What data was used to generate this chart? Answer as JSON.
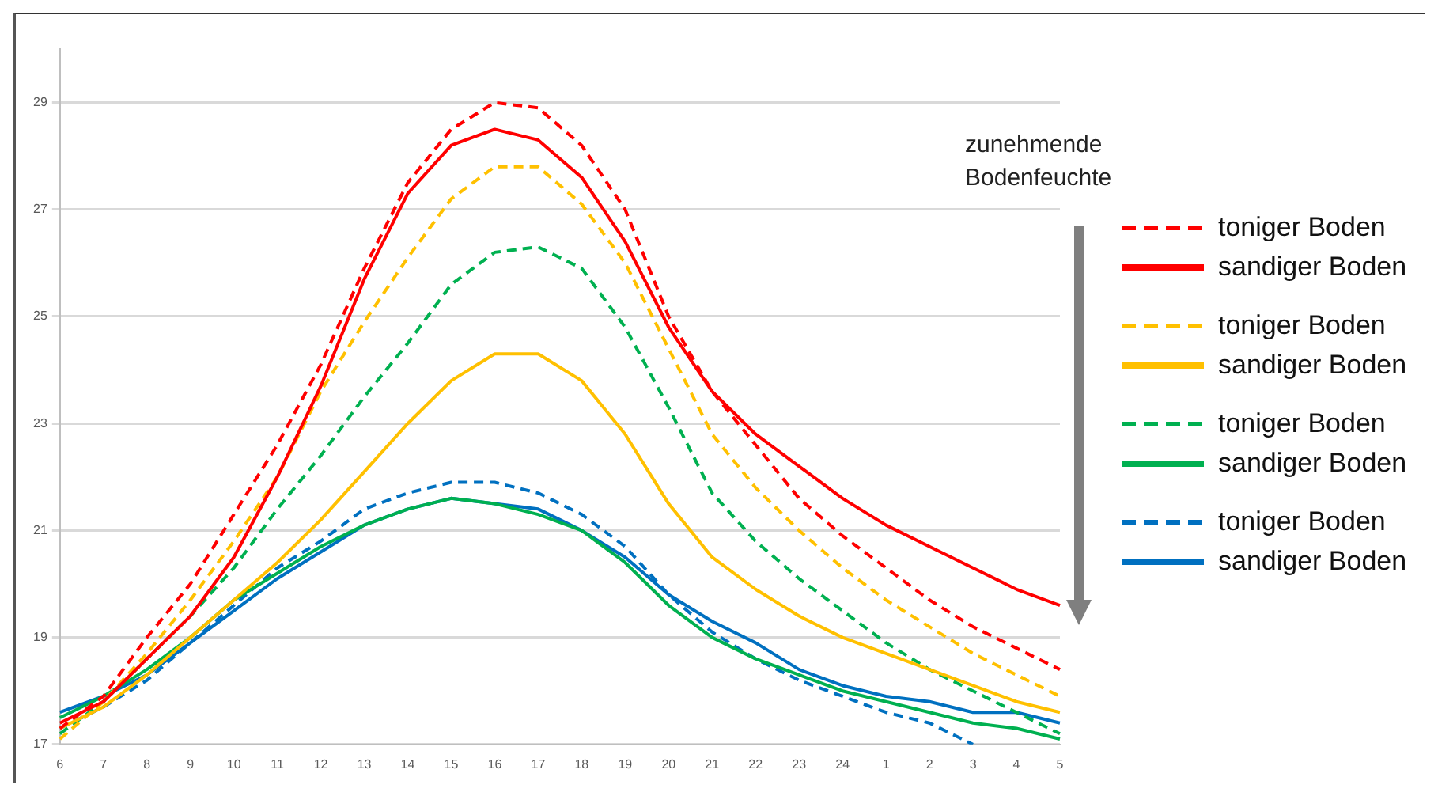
{
  "chart_data": {
    "type": "line",
    "categories": [
      "6",
      "7",
      "8",
      "9",
      "10",
      "11",
      "12",
      "13",
      "14",
      "15",
      "16",
      "17",
      "18",
      "19",
      "20",
      "21",
      "22",
      "23",
      "24",
      "1",
      "2",
      "3",
      "4",
      "5"
    ],
    "ylim": [
      17,
      30
    ],
    "yticks": [
      17,
      19,
      21,
      23,
      25,
      27,
      29
    ],
    "grid": "y",
    "legend": "right",
    "marker": "none",
    "annotations": [
      "zunehmende Bodenfeuchte"
    ],
    "series": [
      {
        "name": "toniger Boden",
        "color": "#ff0000",
        "line_style": "dashed",
        "values": [
          17.3,
          17.9,
          19.0,
          20.0,
          21.3,
          22.6,
          24.1,
          25.9,
          27.5,
          28.5,
          29.0,
          28.9,
          28.2,
          27.0,
          25.0,
          23.6,
          22.6,
          21.6,
          20.9,
          20.3,
          19.7,
          19.2,
          18.8,
          18.4
        ]
      },
      {
        "name": "sandiger Boden",
        "color": "#ff0000",
        "line_style": "solid",
        "values": [
          17.4,
          17.8,
          18.6,
          19.4,
          20.5,
          22.0,
          23.7,
          25.7,
          27.3,
          28.2,
          28.5,
          28.3,
          27.6,
          26.4,
          24.8,
          23.6,
          22.8,
          22.2,
          21.6,
          21.1,
          20.7,
          20.3,
          19.9,
          19.6
        ]
      },
      {
        "name": "toniger Boden",
        "color": "#ffc000",
        "line_style": "dashed",
        "values": [
          17.1,
          17.8,
          18.7,
          19.7,
          20.8,
          22.0,
          23.6,
          24.9,
          26.1,
          27.2,
          27.8,
          27.8,
          27.1,
          26.0,
          24.4,
          22.8,
          21.8,
          21.0,
          20.3,
          19.7,
          19.2,
          18.7,
          18.3,
          17.9
        ]
      },
      {
        "name": "sandiger Boden",
        "color": "#ffc000",
        "line_style": "solid",
        "values": [
          17.3,
          17.7,
          18.3,
          19.0,
          19.7,
          20.4,
          21.2,
          22.1,
          23.0,
          23.8,
          24.3,
          24.3,
          23.8,
          22.8,
          21.5,
          20.5,
          19.9,
          19.4,
          19.0,
          18.7,
          18.4,
          18.1,
          17.8,
          17.6
        ]
      },
      {
        "name": "toniger Boden",
        "color": "#00b050",
        "line_style": "dashed",
        "values": [
          17.2,
          17.8,
          18.6,
          19.4,
          20.3,
          21.4,
          22.4,
          23.5,
          24.5,
          25.6,
          26.2,
          26.3,
          25.9,
          24.8,
          23.3,
          21.7,
          20.8,
          20.1,
          19.5,
          18.9,
          18.4,
          18.0,
          17.6,
          17.2
        ]
      },
      {
        "name": "sandiger Boden",
        "color": "#00b050",
        "line_style": "solid",
        "values": [
          17.5,
          17.9,
          18.4,
          19.0,
          19.7,
          20.2,
          20.7,
          21.1,
          21.4,
          21.6,
          21.5,
          21.3,
          21.0,
          20.4,
          19.6,
          19.0,
          18.6,
          18.3,
          18.0,
          17.8,
          17.6,
          17.4,
          17.3,
          17.1
        ]
      },
      {
        "name": "toniger Boden",
        "color": "#0070c0",
        "line_style": "dashed",
        "values": [
          17.3,
          17.7,
          18.2,
          18.9,
          19.6,
          20.3,
          20.8,
          21.4,
          21.7,
          21.9,
          21.9,
          21.7,
          21.3,
          20.7,
          19.8,
          19.1,
          18.6,
          18.2,
          17.9,
          17.6,
          17.4,
          17.0,
          null,
          null
        ]
      },
      {
        "name": "sandiger Boden",
        "color": "#0070c0",
        "line_style": "solid",
        "values": [
          17.6,
          17.9,
          18.3,
          18.9,
          19.5,
          20.1,
          20.6,
          21.1,
          21.4,
          21.6,
          21.5,
          21.4,
          21.0,
          20.5,
          19.8,
          19.3,
          18.9,
          18.4,
          18.1,
          17.9,
          17.8,
          17.6,
          17.6,
          17.4
        ]
      }
    ]
  }
}
